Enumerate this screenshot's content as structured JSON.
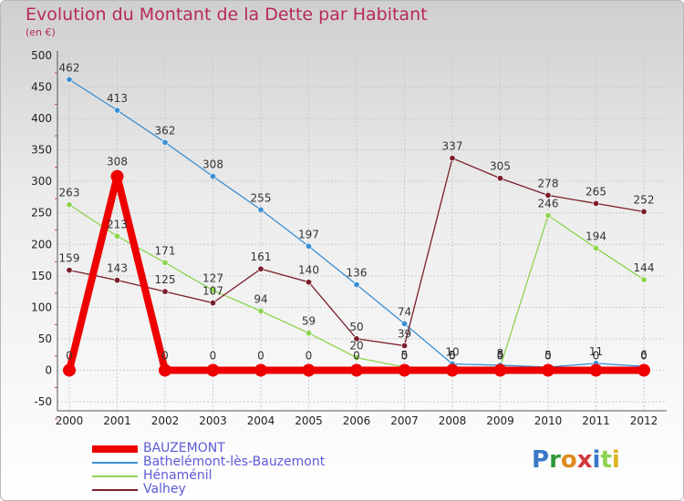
{
  "chart_data": {
    "type": "line",
    "title": "Evolution du Montant de la Dette par Habitant",
    "subtitle": "(en €)",
    "xlabel": "",
    "ylabel": "",
    "ylim": [
      -50,
      500
    ],
    "ytick_step": 50,
    "categories": [
      "2000",
      "2001",
      "2002",
      "2003",
      "2004",
      "2005",
      "2006",
      "2007",
      "2008",
      "2009",
      "2010",
      "2011",
      "2012"
    ],
    "series": [
      {
        "name": "BAUZEMONT",
        "color": "#ee0000",
        "values": [
          0,
          308,
          0,
          0,
          0,
          0,
          0,
          0,
          0,
          0,
          0,
          0,
          0
        ]
      },
      {
        "name": "Bathelémont-lès-Bauzemont",
        "color": "#3b8fd4",
        "values": [
          462,
          413,
          362,
          308,
          255,
          197,
          136,
          74,
          10,
          8,
          5,
          11,
          6
        ]
      },
      {
        "name": "Hénaménil",
        "color": "#8ed34f",
        "values": [
          263,
          213,
          171,
          127,
          94,
          59,
          20,
          5,
          5,
          5,
          246,
          194,
          144
        ]
      },
      {
        "name": "Valhey",
        "color": "#7a1e2a",
        "values": [
          159,
          143,
          125,
          107,
          161,
          140,
          50,
          39,
          337,
          305,
          278,
          265,
          252
        ]
      }
    ]
  },
  "legend": {
    "items": [
      {
        "label": "BAUZEMONT",
        "color": "#ee0000"
      },
      {
        "label": "Bathelémont-lès-Bauzemont",
        "color": "#3b8fd4"
      },
      {
        "label": "Hénaménil",
        "color": "#8ed34f"
      },
      {
        "label": "Valhey",
        "color": "#7a1e2a"
      }
    ]
  },
  "logo": {
    "text": "Proxiti"
  }
}
